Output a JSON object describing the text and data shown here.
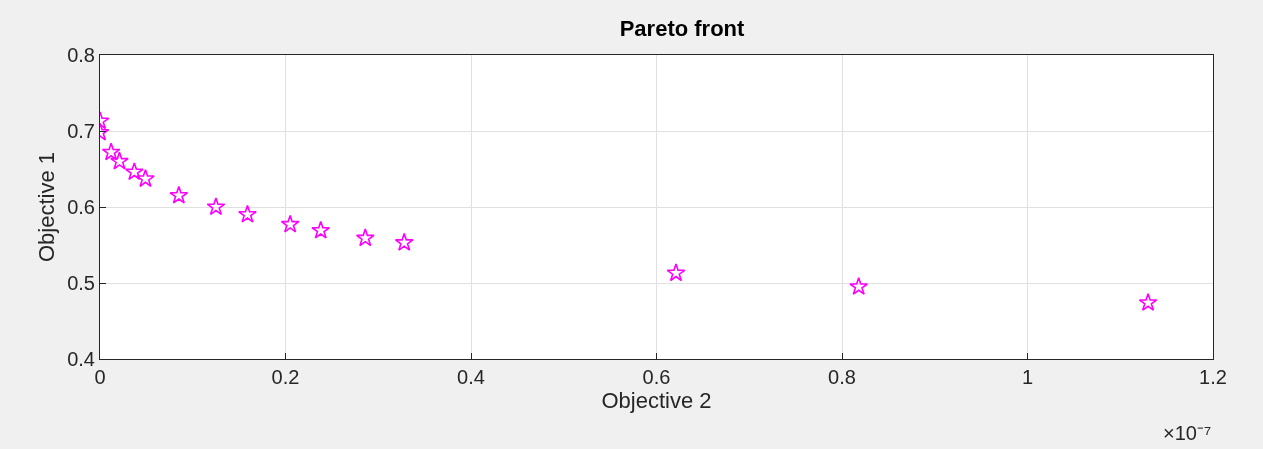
{
  "chart_data": {
    "type": "scatter",
    "title": "Pareto front",
    "xlabel": "Objective 2",
    "ylabel": "Objective 1",
    "annotations": [
      "×10⁻⁷"
    ],
    "x": [
      0,
      0,
      0.012,
      0.021,
      0.037,
      0.049,
      0.085,
      0.125,
      0.159,
      0.205,
      0.238,
      0.286,
      0.328,
      0.621,
      0.818,
      1.13
    ],
    "series": [
      {
        "color": "#ff00ff",
        "values": [
          0.713,
          0.698,
          0.672,
          0.66,
          0.646,
          0.637,
          0.615,
          0.6,
          0.59,
          0.577,
          0.569,
          0.559,
          0.553,
          0.513,
          0.495,
          0.474
        ]
      }
    ],
    "xlim": [
      0,
      1.2
    ],
    "xticks": [
      0,
      0.2,
      0.4,
      0.6,
      0.8,
      1,
      1.2
    ],
    "ylim": [
      0.4,
      0.8
    ],
    "yticks": [
      0.4,
      0.5,
      0.6,
      0.7,
      0.8
    ],
    "grid": true,
    "marker": "star"
  }
}
